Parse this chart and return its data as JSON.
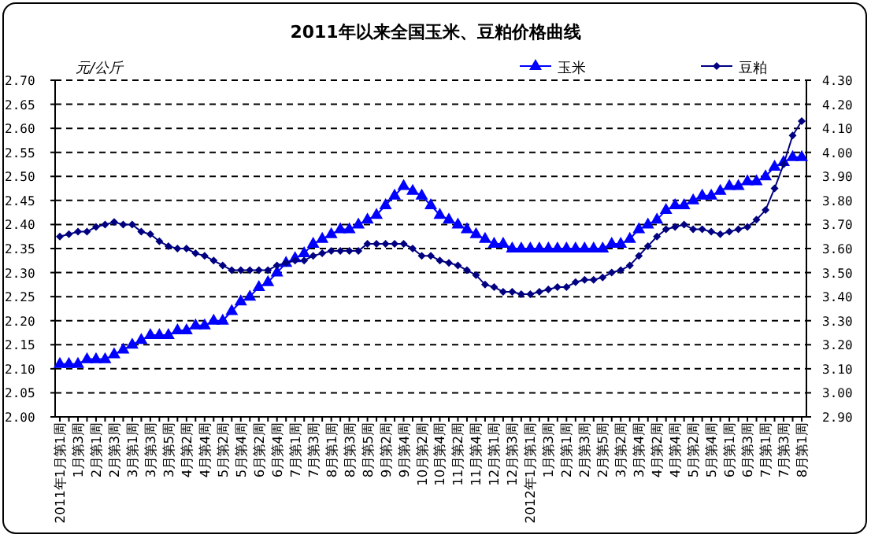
{
  "chart_data": {
    "type": "line",
    "title": "2011年以来全国玉米、豆粕价格曲线",
    "ylabel": "元/公斤",
    "categories": [
      "2011年1月第1周",
      null,
      "1月第3周",
      null,
      "2月第1周",
      null,
      "2月第3周",
      null,
      "3月第1周",
      null,
      "3月第3周",
      null,
      "3月第5周",
      null,
      "4月第2周",
      null,
      "4月第4周",
      null,
      "5月第2周",
      null,
      "5月第4周",
      null,
      "6月第2周",
      null,
      "6月第4周",
      null,
      "7月第1周",
      null,
      "7月第3周",
      null,
      "8月第1周",
      null,
      "8月第3周",
      null,
      "8月第5周",
      null,
      "9月第2周",
      null,
      "9月第4周",
      null,
      "10月第2周",
      null,
      "10月第4周",
      null,
      "11月第2周",
      null,
      "11月第4周",
      null,
      "12月第1周",
      null,
      "12月第3周",
      null,
      "2012年1月第1周",
      null,
      "1月第3周",
      null,
      "2月第1周",
      null,
      "2月第3周",
      null,
      "2月第5周",
      null,
      "3月第2周",
      null,
      "3月第4周",
      null,
      "4月第2周",
      null,
      "4月第4周",
      null,
      "5月第2周",
      null,
      "5月第4周",
      null,
      "6月第1周",
      null,
      "6月第3周",
      null,
      "7月第1周",
      null,
      "7月第3周",
      null,
      "8月第1周"
    ],
    "series": [
      {
        "name": "玉米",
        "color": "#0000ff",
        "marker": "triangle",
        "values": [
          2.11,
          2.11,
          2.11,
          2.12,
          2.12,
          2.12,
          2.13,
          2.14,
          2.15,
          2.16,
          2.17,
          2.17,
          2.17,
          2.18,
          2.18,
          2.19,
          2.19,
          2.2,
          2.2,
          2.22,
          2.24,
          2.25,
          2.27,
          2.28,
          2.3,
          2.32,
          2.33,
          2.34,
          2.36,
          2.37,
          2.38,
          2.39,
          2.39,
          2.4,
          2.41,
          2.42,
          2.44,
          2.46,
          2.48,
          2.47,
          2.46,
          2.44,
          2.42,
          2.41,
          2.4,
          2.39,
          2.38,
          2.37,
          2.36,
          2.36,
          2.35,
          2.35,
          2.35,
          2.35,
          2.35,
          2.35,
          2.35,
          2.35,
          2.35,
          2.35,
          2.35,
          2.36,
          2.36,
          2.37,
          2.39,
          2.4,
          2.41,
          2.43,
          2.44,
          2.44,
          2.45,
          2.46,
          2.46,
          2.47,
          2.48,
          2.48,
          2.49,
          2.49,
          2.5,
          2.52,
          2.53,
          2.54,
          2.54
        ]
      },
      {
        "name": "豆粕",
        "color": "#000080",
        "marker": "diamond",
        "axis": "y2",
        "values": [
          3.65,
          3.66,
          3.67,
          3.67,
          3.69,
          3.7,
          3.71,
          3.7,
          3.7,
          3.67,
          3.66,
          3.63,
          3.61,
          3.6,
          3.6,
          3.58,
          3.57,
          3.55,
          3.53,
          3.51,
          3.51,
          3.51,
          3.51,
          3.51,
          3.53,
          3.54,
          3.55,
          3.55,
          3.57,
          3.58,
          3.59,
          3.59,
          3.59,
          3.59,
          3.62,
          3.62,
          3.62,
          3.62,
          3.62,
          3.6,
          3.57,
          3.57,
          3.55,
          3.54,
          3.53,
          3.51,
          3.49,
          3.45,
          3.44,
          3.42,
          3.42,
          3.41,
          3.41,
          3.42,
          3.43,
          3.44,
          3.44,
          3.46,
          3.47,
          3.47,
          3.48,
          3.5,
          3.51,
          3.53,
          3.57,
          3.61,
          3.65,
          3.68,
          3.69,
          3.7,
          3.68,
          3.68,
          3.67,
          3.66,
          3.67,
          3.68,
          3.69,
          3.72,
          3.76,
          3.85,
          3.95,
          4.07,
          4.13
        ]
      }
    ],
    "ylim": [
      2.0,
      2.7
    ],
    "yticks": [
      {
        "value": 2.0,
        "label": "2.00"
      },
      {
        "value": 2.05,
        "label": "2.05"
      },
      {
        "value": 2.1,
        "label": "2.10"
      },
      {
        "value": 2.15,
        "label": "2.15"
      },
      {
        "value": 2.2,
        "label": "2.20"
      },
      {
        "value": 2.25,
        "label": "2.25"
      },
      {
        "value": 2.3,
        "label": "2.30"
      },
      {
        "value": 2.35,
        "label": "2.35"
      },
      {
        "value": 2.4,
        "label": "2.40"
      },
      {
        "value": 2.45,
        "label": "2.45"
      },
      {
        "value": 2.5,
        "label": "2.50"
      },
      {
        "value": 2.55,
        "label": "2.55"
      },
      {
        "value": 2.6,
        "label": "2.60"
      },
      {
        "value": 2.65,
        "label": "2.65"
      },
      {
        "value": 2.7,
        "label": "2.70"
      }
    ],
    "y2lim": [
      2.9,
      4.3
    ],
    "y2ticks": [
      {
        "value": 2.9,
        "label": "2.90"
      },
      {
        "value": 3.0,
        "label": "3.00"
      },
      {
        "value": 3.1,
        "label": "3.10"
      },
      {
        "value": 3.2,
        "label": "3.20"
      },
      {
        "value": 3.3,
        "label": "3.30"
      },
      {
        "value": 3.4,
        "label": "3.40"
      },
      {
        "value": 3.5,
        "label": "3.50"
      },
      {
        "value": 3.6,
        "label": "3.60"
      },
      {
        "value": 3.7,
        "label": "3.70"
      },
      {
        "value": 3.8,
        "label": "3.80"
      },
      {
        "value": 3.9,
        "label": "3.90"
      },
      {
        "value": 4.0,
        "label": "4.00"
      },
      {
        "value": 4.1,
        "label": "4.10"
      },
      {
        "value": 4.2,
        "label": "4.20"
      },
      {
        "value": 4.3,
        "label": "4.30"
      }
    ],
    "grid": "y",
    "legend": "top right",
    "line_style": "solid"
  }
}
